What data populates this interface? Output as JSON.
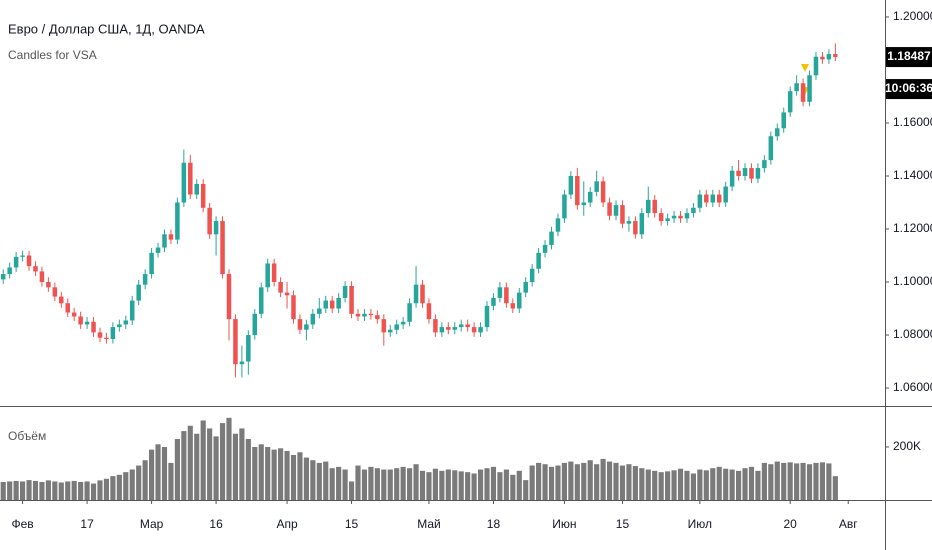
{
  "chart_data": {
    "type": "candlestick",
    "title": "Евро / Доллар США, 1Д, OANDA",
    "indicator": "Candles for VSA",
    "up_color": "#26a69a",
    "down_color": "#ef5350",
    "open": [
      1.101,
      1.103,
      1.1055,
      1.1095,
      1.11,
      1.106,
      1.104,
      1.1,
      1.098,
      1.0945,
      1.092,
      1.0885,
      1.087,
      1.084,
      1.085,
      1.081,
      1.079,
      1.0785,
      1.083,
      1.084,
      1.0855,
      1.093,
      1.099,
      1.103,
      1.111,
      1.113,
      1.118,
      1.116,
      1.13,
      1.145,
      1.133,
      1.137,
      1.128,
      1.118,
      1.123,
      1.103,
      1.086,
      1.069,
      1.07,
      1.08,
      1.088,
      1.098,
      1.107,
      1.1,
      1.096,
      1.095,
      1.086,
      1.082,
      1.084,
      1.088,
      1.09,
      1.093,
      1.09,
      1.094,
      1.0985,
      1.088,
      1.087,
      1.088,
      1.0875,
      1.086,
      1.081,
      1.082,
      1.084,
      1.085,
      1.092,
      1.099,
      1.092,
      1.086,
      1.081,
      1.083,
      1.082,
      1.083,
      1.084,
      1.083,
      1.081,
      1.083,
      1.091,
      1.094,
      1.098,
      1.092,
      1.09,
      1.096,
      1.1,
      1.105,
      1.111,
      1.114,
      1.119,
      1.124,
      1.133,
      1.14,
      1.129,
      1.13,
      1.134,
      1.138,
      1.13,
      1.125,
      1.129,
      1.122,
      1.123,
      1.118,
      1.126,
      1.131,
      1.126,
      1.123,
      1.124,
      1.125,
      1.124,
      1.126,
      1.128,
      1.133,
      1.13,
      1.133,
      1.13,
      1.136,
      1.142,
      1.14,
      1.143,
      1.139,
      1.143,
      1.146,
      1.155,
      1.158,
      1.164,
      1.172,
      1.175,
      1.168,
      1.178,
      1.185,
      1.184,
      1.186
    ],
    "high": [
      1.1048,
      1.1073,
      1.1113,
      1.1118,
      1.1118,
      1.1078,
      1.1058,
      1.1018,
      1.0998,
      1.0963,
      1.0938,
      1.0903,
      1.0888,
      1.0868,
      1.0868,
      1.0828,
      1.0808,
      1.0848,
      1.0858,
      1.0873,
      1.0948,
      1.1008,
      1.1048,
      1.1128,
      1.1148,
      1.1198,
      1.1198,
      1.1318,
      1.15,
      1.148,
      1.1388,
      1.1388,
      1.1298,
      1.1248,
      1.1248,
      1.1048,
      1.0878,
      1.076,
      1.0818,
      1.0898,
      1.0998,
      1.1088,
      1.1088,
      1.1018,
      1.1,
      1.0968,
      1.0878,
      1.0858,
      1.0898,
      1.094,
      1.0948,
      1.0948,
      1.0958,
      1.1003,
      1.1003,
      1.0898,
      1.0898,
      1.0898,
      1.0893,
      1.0878,
      1.0838,
      1.0858,
      1.0868,
      1.0938,
      1.106,
      1.1008,
      1.0938,
      1.0878,
      1.0848,
      1.0848,
      1.0848,
      1.0858,
      1.0858,
      1.0848,
      1.0848,
      1.0928,
      1.0958,
      1.1,
      1.0998,
      1.0938,
      1.0978,
      1.1018,
      1.1068,
      1.1128,
      1.1158,
      1.1208,
      1.1258,
      1.1348,
      1.1418,
      1.143,
      1.138,
      1.1358,
      1.142,
      1.1398,
      1.1318,
      1.1308,
      1.1308,
      1.1248,
      1.1248,
      1.1278,
      1.136,
      1.1328,
      1.1278,
      1.1258,
      1.1268,
      1.1268,
      1.1278,
      1.1298,
      1.1348,
      1.1348,
      1.1348,
      1.1348,
      1.1378,
      1.1438,
      1.146,
      1.1448,
      1.1448,
      1.1448,
      1.1478,
      1.1568,
      1.1598,
      1.1658,
      1.1738,
      1.178,
      1.1768,
      1.1798,
      1.1868,
      1.1868,
      1.1878,
      1.19
    ],
    "low": [
      1.0993,
      1.1013,
      1.1038,
      1.1078,
      1.1043,
      1.1023,
      1.0983,
      1.0963,
      1.0928,
      1.0903,
      1.0868,
      1.0853,
      1.0823,
      1.0823,
      1.0793,
      1.0773,
      1.0768,
      1.0768,
      1.0813,
      1.0823,
      1.0838,
      1.0913,
      1.0973,
      1.1013,
      1.1093,
      1.1113,
      1.1143,
      1.1143,
      1.1283,
      1.1313,
      1.1313,
      1.1263,
      1.1163,
      1.11,
      1.1013,
      1.078,
      1.064,
      1.064,
      1.065,
      1.0783,
      1.0863,
      1.0963,
      1.0983,
      1.0943,
      1.09,
      1.0843,
      1.0803,
      1.078,
      1.0823,
      1.0863,
      1.0883,
      1.0883,
      1.0883,
      1.0923,
      1.0863,
      1.0853,
      1.0853,
      1.0858,
      1.0843,
      1.076,
      1.0793,
      1.0803,
      1.0823,
      1.0833,
      1.0903,
      1.0903,
      1.0843,
      1.0793,
      1.0793,
      1.0803,
      1.0803,
      1.0813,
      1.0813,
      1.0793,
      1.0793,
      1.0813,
      1.0893,
      1.0923,
      1.0903,
      1.0883,
      1.0883,
      1.0943,
      1.0983,
      1.1033,
      1.1093,
      1.1123,
      1.1173,
      1.1223,
      1.1313,
      1.1273,
      1.125,
      1.1283,
      1.1323,
      1.1283,
      1.1233,
      1.1233,
      1.1203,
      1.119,
      1.1163,
      1.1163,
      1.1243,
      1.1243,
      1.1213,
      1.1213,
      1.1223,
      1.1223,
      1.1223,
      1.1243,
      1.1263,
      1.1283,
      1.1283,
      1.1283,
      1.1283,
      1.1343,
      1.1383,
      1.1383,
      1.1373,
      1.1373,
      1.1413,
      1.1443,
      1.1533,
      1.1563,
      1.1623,
      1.1703,
      1.1663,
      1.1663,
      1.1763,
      1.1823,
      1.1823,
      1.1833
    ],
    "close": [
      1.103,
      1.1055,
      1.1095,
      1.11,
      1.106,
      1.104,
      1.1,
      1.098,
      1.0945,
      1.092,
      1.0885,
      1.087,
      1.084,
      1.085,
      1.081,
      1.079,
      1.0785,
      1.083,
      1.084,
      1.0855,
      1.093,
      1.099,
      1.103,
      1.111,
      1.113,
      1.118,
      1.116,
      1.13,
      1.145,
      1.133,
      1.137,
      1.128,
      1.118,
      1.123,
      1.103,
      1.086,
      1.069,
      1.07,
      1.08,
      1.088,
      1.098,
      1.107,
      1.1,
      1.096,
      1.095,
      1.086,
      1.082,
      1.084,
      1.088,
      1.09,
      1.093,
      1.09,
      1.094,
      1.0985,
      1.088,
      1.087,
      1.088,
      1.0875,
      1.086,
      1.081,
      1.082,
      1.084,
      1.085,
      1.092,
      1.099,
      1.092,
      1.086,
      1.081,
      1.083,
      1.082,
      1.083,
      1.084,
      1.083,
      1.081,
      1.083,
      1.091,
      1.094,
      1.098,
      1.092,
      1.09,
      1.096,
      1.1,
      1.105,
      1.111,
      1.114,
      1.119,
      1.124,
      1.133,
      1.14,
      1.129,
      1.13,
      1.134,
      1.138,
      1.13,
      1.125,
      1.129,
      1.122,
      1.123,
      1.118,
      1.126,
      1.131,
      1.126,
      1.123,
      1.124,
      1.125,
      1.124,
      1.126,
      1.128,
      1.133,
      1.13,
      1.133,
      1.13,
      1.136,
      1.142,
      1.14,
      1.143,
      1.139,
      1.143,
      1.146,
      1.155,
      1.158,
      1.164,
      1.172,
      1.175,
      1.168,
      1.178,
      1.185,
      1.184,
      1.186,
      1.1849
    ],
    "xlim": [
      -0.5,
      136.7
    ],
    "xticks": [
      {
        "value": 3,
        "label": "Фев"
      },
      {
        "value": 13,
        "label": "17"
      },
      {
        "value": 23,
        "label": "Мар"
      },
      {
        "value": 33,
        "label": "16"
      },
      {
        "value": 44,
        "label": "Апр"
      },
      {
        "value": 54,
        "label": "15"
      },
      {
        "value": 66,
        "label": "Май"
      },
      {
        "value": 76,
        "label": "18"
      },
      {
        "value": 87,
        "label": "Июн"
      },
      {
        "value": 96,
        "label": "15"
      },
      {
        "value": 108,
        "label": "Июл"
      },
      {
        "value": 122,
        "label": "20"
      },
      {
        "value": 131,
        "label": "Авг"
      }
    ],
    "ylim": [
      1.0536,
      1.2064
    ],
    "yticks": [
      {
        "value": 1.06,
        "label": "1.06000"
      },
      {
        "value": 1.08,
        "label": "1.08000"
      },
      {
        "value": 1.1,
        "label": "1.10000"
      },
      {
        "value": 1.12,
        "label": "1.12000"
      },
      {
        "value": 1.14,
        "label": "1.14000"
      },
      {
        "value": 1.16,
        "label": "1.16000"
      },
      {
        "value": 1.2,
        "label": "1.20000"
      }
    ],
    "last_price": {
      "value": 1.18487,
      "label": "1.18487"
    },
    "countdown": "10:06:36",
    "volume": {
      "label": "Объём",
      "color": "#7a7a7a",
      "ylim": [
        0,
        347000
      ],
      "yticks": [
        {
          "value": 200000,
          "label": "200K"
        }
      ],
      "values": [
        68000,
        70000,
        72000,
        70000,
        75000,
        72000,
        68000,
        74000,
        70000,
        66000,
        70000,
        72000,
        68000,
        70000,
        62000,
        74000,
        80000,
        90000,
        95000,
        105000,
        115000,
        130000,
        150000,
        190000,
        210000,
        200000,
        140000,
        230000,
        260000,
        280000,
        250000,
        300000,
        270000,
        240000,
        290000,
        310000,
        250000,
        270000,
        230000,
        200000,
        210000,
        200000,
        190000,
        195000,
        185000,
        170000,
        180000,
        160000,
        150000,
        140000,
        145000,
        120000,
        125000,
        115000,
        70000,
        130000,
        115000,
        125000,
        120000,
        115000,
        115000,
        120000,
        125000,
        120000,
        135000,
        110000,
        105000,
        118000,
        110000,
        115000,
        112000,
        108000,
        105000,
        100000,
        115000,
        120000,
        125000,
        105000,
        115000,
        95000,
        110000,
        75000,
        130000,
        140000,
        135000,
        125000,
        130000,
        140000,
        145000,
        135000,
        140000,
        150000,
        135000,
        155000,
        145000,
        140000,
        130000,
        135000,
        128000,
        120000,
        115000,
        110000,
        105000,
        108000,
        112000,
        118000,
        110000,
        100000,
        115000,
        112000,
        120000,
        125000,
        118000,
        115000,
        110000,
        120000,
        125000,
        110000,
        140000,
        135000,
        145000,
        140000,
        142000,
        138000,
        140000,
        135000,
        140000,
        142000,
        138000,
        90000
      ]
    }
  }
}
